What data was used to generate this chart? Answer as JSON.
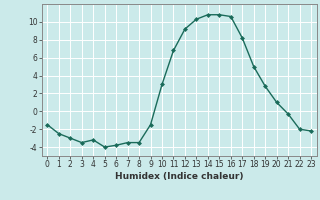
{
  "x": [
    0,
    1,
    2,
    3,
    4,
    5,
    6,
    7,
    8,
    9,
    10,
    11,
    12,
    13,
    14,
    15,
    16,
    17,
    18,
    19,
    20,
    21,
    22,
    23
  ],
  "y": [
    -1.5,
    -2.5,
    -3.0,
    -3.5,
    -3.2,
    -4.0,
    -3.8,
    -3.5,
    -3.5,
    -1.5,
    3.0,
    6.8,
    9.2,
    10.3,
    10.8,
    10.8,
    10.6,
    8.2,
    5.0,
    2.8,
    1.0,
    -0.3,
    -2.0,
    -2.2
  ],
  "line_color": "#1a6b5a",
  "marker": "D",
  "markersize": 2.0,
  "linewidth": 1.0,
  "xlabel": "Humidex (Indice chaleur)",
  "xlim": [
    -0.5,
    23.5
  ],
  "ylim": [
    -5,
    12
  ],
  "yticks": [
    -4,
    -2,
    0,
    2,
    4,
    6,
    8,
    10
  ],
  "xticks": [
    0,
    1,
    2,
    3,
    4,
    5,
    6,
    7,
    8,
    9,
    10,
    11,
    12,
    13,
    14,
    15,
    16,
    17,
    18,
    19,
    20,
    21,
    22,
    23
  ],
  "bg_color": "#cbeaea",
  "grid_color": "#ffffff",
  "axes_color": "#888888",
  "font_color": "#333333",
  "tick_font_size": 5.5,
  "xlabel_font_size": 6.5
}
